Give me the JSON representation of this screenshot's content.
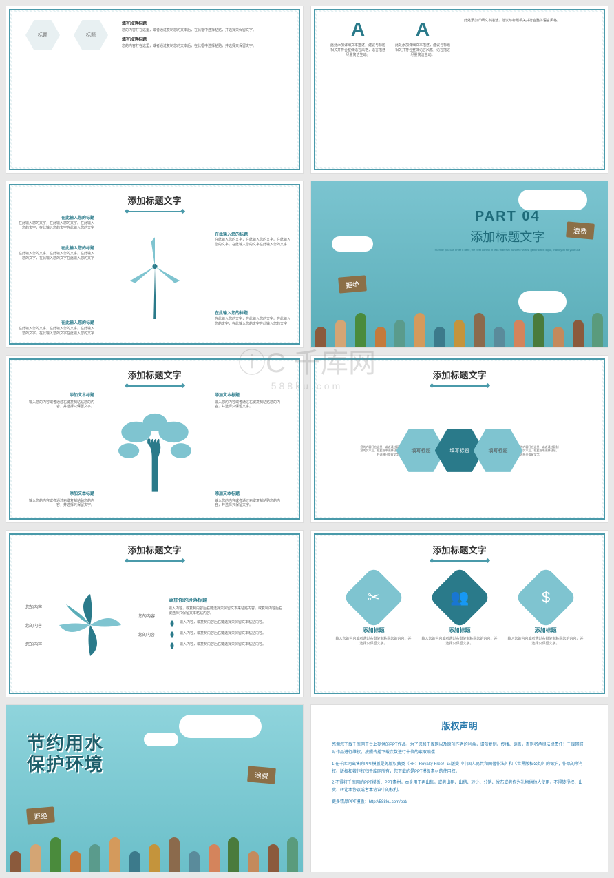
{
  "colors": {
    "teal_dark": "#2a7a8a",
    "teal_mid": "#4a9aaa",
    "teal_light": "#7fc4d0",
    "bg_water": "#7bc4d0",
    "text": "#666666",
    "sign_brown": "#8b6f47",
    "copy_blue": "#2a7aac"
  },
  "watermark": {
    "main": "千库网",
    "sub": "588ku.com",
    "icon": "ⓘC"
  },
  "slide1": {
    "hex_label": "标题",
    "block1_title": "填写段落标题",
    "block1_body": "您的内容打在这里，或者通过复制您的文本后，在此框中选择粘贴，并选择只保留文字。",
    "block2_title": "填写段落标题",
    "block2_body": "您的内容打在这里，或者通过复制您的文本后，在此框中选择粘贴，并选择只保留文字。"
  },
  "slide2": {
    "a_label": "A",
    "body1": "此处添加详细文本描述，建议与标题相关并符合整体语言风格，语言描述尽量简洁生动。",
    "body2": "此处添加详细文本描述，建议与标题相关并符合整体语言风格，语言描述尽量简洁生动。",
    "body3": "此处添加详细文本描述，建议与标题相关并符合整体语言风格。"
  },
  "slide3": {
    "title": "添加标题文字",
    "callout_title": "在此输入您的标题",
    "callout_body": "在此输入您的文字，在此输入您的文字。在此输入您的文字，在此输入您的文字在此输入您的文字"
  },
  "slide4": {
    "part_num": "PART 04",
    "part_title": "添加标题文字",
    "subtitle": "Subtitle you can enter it here, the best control in less than two hundred words, general text input, thank you for your use",
    "sign_left": "拒绝",
    "sign_right": "浪费",
    "hand_colors": [
      "#8b5a3c",
      "#d4a574",
      "#4a8b3c",
      "#c47a3c",
      "#5a9b8c",
      "#d49a5c",
      "#3c7a8b",
      "#c4943c",
      "#8b6a4c",
      "#5a8b9b",
      "#d4845c",
      "#4a7b3c",
      "#c48a5c",
      "#8b5a3c",
      "#5a9b7c"
    ]
  },
  "slide5": {
    "title": "添加标题文字",
    "quad_title": "添加文本标题",
    "quad_body": "输入您的内容或者通过右键复制粘贴您的内容，并选择只保留文字。"
  },
  "slide6": {
    "title": "添加标题文字",
    "hex_label": "填写标题",
    "side_text": "您的内容打在这里，或者通过复制您的文本后，在此框中选择粘贴，并选择只保留文字。"
  },
  "slide7": {
    "title": "添加标题文字",
    "label": "您的内容",
    "right_title": "添加你的段落标题",
    "right_body": "输入内容，或复制内容后右键选择只保留文本来粘贴内容，或复制内容后右键选择只保留文本粘贴内容。",
    "leaf_text": "输入内容，或复制内容后右键选择只保留文本粘贴内容。"
  },
  "slide8": {
    "title": "添加标题文字",
    "col_title": "添加标题",
    "col_body": "输入您的内容或者通过右键复制粘贴您的内容，并选择只保留文字。",
    "icons": [
      "tools",
      "people",
      "money"
    ]
  },
  "slide9": {
    "line1": "节约用水",
    "line2": "保护环境",
    "sign_left": "拒绝",
    "sign_right": "浪费",
    "hand_colors": [
      "#8b5a3c",
      "#d4a574",
      "#4a8b3c",
      "#c47a3c",
      "#5a9b8c",
      "#d49a5c",
      "#3c7a8b",
      "#c4943c",
      "#8b6a4c",
      "#5a8b9b",
      "#d4845c",
      "#4a7b3c",
      "#c48a5c",
      "#8b5a3c",
      "#5a9b7c"
    ]
  },
  "slide10": {
    "title": "版权声明",
    "p1": "感谢您下载千库网平台上提供的PPT作品，为了您和千库网以及原创作者的利益，请勿复制、传播、销售，否则将承担法律责任！千库网将对作品进行维权，按照传播下载次数进行十倍的索取赔偿！",
    "p2": "1.在千库网出售的PPT模板是免版权费类（RF：Royalty-Free）正版受《中国人民共和国著作法》和《世界版权公约》的保护，作品的所有权、版权和著作权归千库网所有，您下载的是PPT模板素材的使用权。",
    "p3": "2.不得将千库网的PPT模板、PPT素材，本身用于再出售，或者出租、出借、转让、分销、发布或者作为礼物供他人使用，不得转授权、出卖、转让本协议或者本协议中的权利。",
    "p4": "更多精品PPT模板：http://588ku.com/ppt/"
  }
}
